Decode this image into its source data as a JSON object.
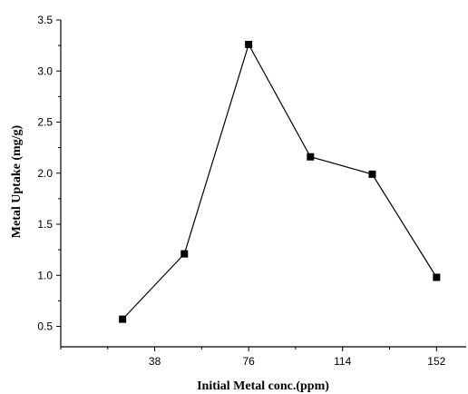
{
  "chart_data": {
    "type": "line",
    "title": "",
    "xlabel": "Initial Metal conc.(ppm)",
    "ylabel": "Metal Uptake (mg/g)",
    "xlim": [
      0,
      164
    ],
    "ylim": [
      0.3,
      3.5
    ],
    "x_ticks": [
      "38",
      "76",
      "114",
      "152"
    ],
    "y_ticks": [
      "0.5",
      "1.0",
      "1.5",
      "2.0",
      "2.5",
      "3.0",
      "3.5"
    ],
    "grid": false,
    "series": [
      {
        "marker": "square",
        "color": "#000000",
        "x": [
          25,
          50,
          76,
          101,
          126,
          152
        ],
        "y": [
          0.57,
          1.21,
          3.26,
          2.16,
          1.99,
          0.98
        ]
      }
    ]
  }
}
